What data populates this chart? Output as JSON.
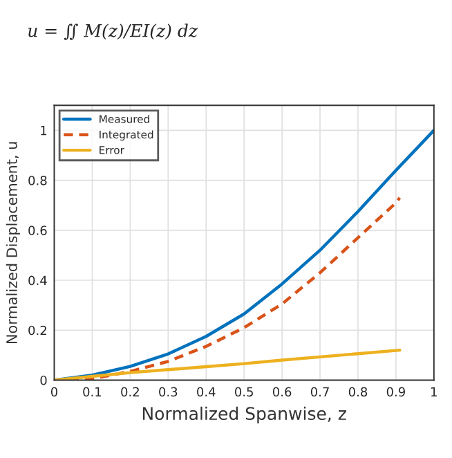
{
  "chart_data": {
    "type": "line",
    "xlabel": "Normalized Spanwise, z",
    "ylabel": "Normalized Displacement, u",
    "annotations": [
      "u = ∬ M(z)/EI(z) dz"
    ],
    "series": [
      {
        "name": "Measured",
        "color": "#0072bd",
        "line_style": "solid",
        "x": [
          0,
          0.1,
          0.2,
          0.3,
          0.4,
          0.5,
          0.6,
          0.7,
          0.8,
          0.9,
          1.0
        ],
        "values": [
          0,
          0.02,
          0.055,
          0.105,
          0.175,
          0.265,
          0.385,
          0.52,
          0.675,
          0.84,
          1.0
        ]
      },
      {
        "name": "Integrated",
        "color": "#d95319",
        "line_style": "dashed",
        "x": [
          0,
          0.1,
          0.15,
          0.2,
          0.3,
          0.4,
          0.5,
          0.6,
          0.7,
          0.8,
          0.9,
          0.91
        ],
        "values": [
          0,
          0.005,
          0.02,
          0.035,
          0.075,
          0.135,
          0.21,
          0.305,
          0.43,
          0.57,
          0.71,
          0.73
        ]
      },
      {
        "name": "Error",
        "color": "#edb120",
        "line_style": "solid",
        "x": [
          0,
          0.1,
          0.2,
          0.3,
          0.4,
          0.5,
          0.6,
          0.7,
          0.8,
          0.91
        ],
        "values": [
          0,
          0.015,
          0.03,
          0.042,
          0.054,
          0.066,
          0.08,
          0.093,
          0.106,
          0.12
        ]
      }
    ],
    "xlim": [
      0,
      1
    ],
    "xticks": [
      0,
      0.1,
      0.2,
      0.3,
      0.4,
      0.5,
      0.6,
      0.7,
      0.8,
      0.9,
      1
    ],
    "ylim": [
      0,
      1.1
    ],
    "yticks": [
      0,
      0.2,
      0.4,
      0.6,
      0.8,
      1
    ],
    "grid": true,
    "legend": "top left"
  }
}
